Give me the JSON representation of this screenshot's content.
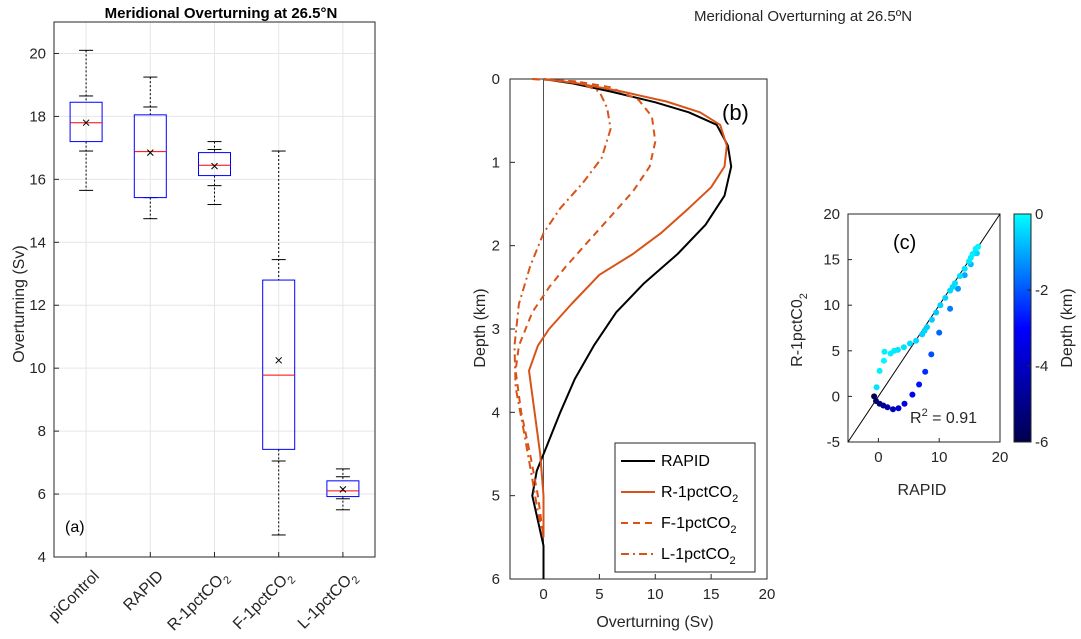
{
  "figure": {
    "title_a": "Meridional Overturning at 26.5°N",
    "title_b": "Meridional Overturning at 26.5ºN"
  },
  "chart_data": [
    {
      "type": "box",
      "panel_label": "(a)",
      "title": "Meridional Overturning at 26.5°N",
      "xlabel": "",
      "ylabel": "Overturning (Sv)",
      "ylim": [
        4,
        21
      ],
      "yticks": [
        4,
        6,
        8,
        10,
        12,
        14,
        16,
        18,
        20
      ],
      "grid": true,
      "categories": [
        {
          "label": "piControl",
          "sub": ""
        },
        {
          "label": "RAPID",
          "sub": ""
        },
        {
          "label": "R-1pctCO",
          "sub": "2"
        },
        {
          "label": "F-1pctCO",
          "sub": "2"
        },
        {
          "label": "L-1pctCO",
          "sub": "2"
        }
      ],
      "boxes": [
        {
          "min": 15.65,
          "q1": 17.2,
          "median": 17.8,
          "q3": 18.45,
          "max": 20.1,
          "mean": 17.8,
          "ticks": [
            15.65,
            16.9,
            18.65,
            20.1
          ]
        },
        {
          "min": 14.75,
          "q1": 15.42,
          "median": 16.88,
          "q3": 18.05,
          "max": 19.25,
          "mean": 16.85,
          "ticks": [
            14.75,
            15.42,
            18.3,
            19.25
          ]
        },
        {
          "min": 15.2,
          "q1": 16.12,
          "median": 16.45,
          "q3": 16.85,
          "max": 17.2,
          "mean": 16.42,
          "ticks": [
            15.2,
            15.8,
            16.95,
            17.2
          ]
        },
        {
          "min": 4.7,
          "q1": 7.42,
          "median": 9.78,
          "q3": 12.8,
          "max": 16.9,
          "mean": 10.25,
          "ticks": [
            4.7,
            7.05,
            13.45,
            16.9
          ]
        },
        {
          "min": 5.5,
          "q1": 5.92,
          "median": 6.1,
          "q3": 6.42,
          "max": 6.8,
          "mean": 6.15,
          "ticks": [
            5.5,
            5.85,
            6.55,
            6.8
          ]
        }
      ],
      "colors": {
        "box": "#0000ff",
        "median": "#ff0000",
        "whisker": "#000000",
        "mean": "#000000"
      }
    },
    {
      "type": "line",
      "panel_label": "(b)",
      "title": "Meridional Overturning at 26.5ºN",
      "xlabel": "Overturning (Sv)",
      "ylabel": "Depth (km)",
      "xlim": [
        -3,
        20
      ],
      "ylim": [
        0,
        6
      ],
      "xticks": [
        0,
        5,
        10,
        15,
        20
      ],
      "yticks": [
        0,
        1,
        2,
        3,
        4,
        5,
        6
      ],
      "yreversed": true,
      "legend_position": "lower right",
      "series": [
        {
          "name": "RAPID",
          "sub": "",
          "color": "#000000",
          "dash": "solid",
          "points": [
            [
              0,
              0
            ],
            [
              2.5,
              0.05
            ],
            [
              6,
              0.15
            ],
            [
              10,
              0.28
            ],
            [
              13,
              0.4
            ],
            [
              15.5,
              0.55
            ],
            [
              16.5,
              0.8
            ],
            [
              16.8,
              1.05
            ],
            [
              16.2,
              1.4
            ],
            [
              14.5,
              1.75
            ],
            [
              12,
              2.1
            ],
            [
              9,
              2.45
            ],
            [
              6.5,
              2.8
            ],
            [
              4.5,
              3.2
            ],
            [
              2.8,
              3.6
            ],
            [
              1.5,
              4.0
            ],
            [
              0.3,
              4.4
            ],
            [
              -0.6,
              4.7
            ],
            [
              -1.0,
              5.0
            ],
            [
              -0.5,
              5.3
            ],
            [
              0,
              5.6
            ],
            [
              0,
              6.0
            ]
          ]
        },
        {
          "name": "R-1pctCO",
          "sub": "2",
          "color": "#d95319",
          "dash": "solid",
          "points": [
            [
              0,
              0
            ],
            [
              3,
              0.05
            ],
            [
              7,
              0.15
            ],
            [
              11,
              0.27
            ],
            [
              14,
              0.4
            ],
            [
              15.8,
              0.55
            ],
            [
              16.4,
              0.8
            ],
            [
              16.2,
              1.05
            ],
            [
              15,
              1.3
            ],
            [
              13,
              1.55
            ],
            [
              10.5,
              1.85
            ],
            [
              8,
              2.1
            ],
            [
              5,
              2.35
            ],
            [
              2.5,
              2.7
            ],
            [
              0.5,
              3.0
            ],
            [
              -0.5,
              3.2
            ],
            [
              -1.3,
              3.5
            ],
            [
              -0.8,
              4.0
            ],
            [
              -0.3,
              4.5
            ],
            [
              0,
              5.0
            ],
            [
              0,
              5.5
            ]
          ]
        },
        {
          "name": "F-1pctCO",
          "sub": "2",
          "color": "#d95319",
          "dash": "dashed",
          "points": [
            [
              -1,
              0
            ],
            [
              3,
              0.03
            ],
            [
              6,
              0.1
            ],
            [
              8.5,
              0.25
            ],
            [
              9.7,
              0.45
            ],
            [
              10,
              0.75
            ],
            [
              9.5,
              1.05
            ],
            [
              8,
              1.35
            ],
            [
              6,
              1.65
            ],
            [
              4,
              1.95
            ],
            [
              2,
              2.25
            ],
            [
              0.5,
              2.5
            ],
            [
              -1,
              2.8
            ],
            [
              -2.2,
              3.2
            ],
            [
              -2.5,
              3.5
            ],
            [
              -2,
              4.0
            ],
            [
              -1.2,
              4.5
            ],
            [
              -0.5,
              5.0
            ],
            [
              0,
              5.5
            ]
          ]
        },
        {
          "name": "L-1pctCO",
          "sub": "2",
          "color": "#d95319",
          "dash": "dashdot",
          "points": [
            [
              -1,
              0
            ],
            [
              3,
              0.03
            ],
            [
              5,
              0.15
            ],
            [
              5.7,
              0.35
            ],
            [
              6,
              0.6
            ],
            [
              5.2,
              0.95
            ],
            [
              3.5,
              1.25
            ],
            [
              1.5,
              1.55
            ],
            [
              0,
              1.85
            ],
            [
              -1.2,
              2.25
            ],
            [
              -2.2,
              2.7
            ],
            [
              -2.6,
              3.2
            ],
            [
              -2.5,
              3.7
            ],
            [
              -1.8,
              4.2
            ],
            [
              -1,
              4.8
            ],
            [
              -0.5,
              5.2
            ],
            [
              0,
              5.5
            ]
          ]
        }
      ]
    },
    {
      "type": "scatter",
      "panel_label": "(c)",
      "xlabel": "RAPID",
      "ylabel": "R-1pctC0",
      "ylabel_sub": "2",
      "xlim": [
        -5,
        20
      ],
      "ylim": [
        -5,
        20
      ],
      "xticks": [
        0,
        10,
        20
      ],
      "yticks": [
        -5,
        0,
        5,
        10,
        15,
        20
      ],
      "annotation": {
        "text": "R",
        "sup": "2",
        "rest": " = 0.91"
      },
      "colorbar": {
        "label": "Depth (km)",
        "range": [
          -6,
          0
        ],
        "ticks": [
          0,
          -2,
          -4,
          -6
        ],
        "low_color": "#00004d",
        "high_color": "#00ffff"
      },
      "points": [
        [
          -0.7,
          0,
          -6
        ],
        [
          -0.4,
          -0.5,
          -5.6
        ],
        [
          0.2,
          -0.8,
          -5.1
        ],
        [
          0.8,
          -1.0,
          -4.8
        ],
        [
          1.5,
          -1.2,
          -4.5
        ],
        [
          2.4,
          -1.4,
          -4.2
        ],
        [
          3.3,
          -1.3,
          -3.8
        ],
        [
          4.3,
          -0.8,
          -3.5
        ],
        [
          5.6,
          0.2,
          -3.1
        ],
        [
          6.7,
          1.3,
          -2.8
        ],
        [
          7.7,
          2.7,
          -2.5
        ],
        [
          8.7,
          4.6,
          -2.1
        ],
        [
          10,
          7,
          -1.8
        ],
        [
          11.8,
          9.6,
          -1.5
        ],
        [
          13.1,
          11.8,
          -1.2
        ],
        [
          14.2,
          13.3,
          -1.0
        ],
        [
          15.2,
          14.5,
          -0.8
        ],
        [
          15.8,
          15.7,
          -0.6
        ],
        [
          16.2,
          15.7,
          -0.5
        ],
        [
          -0.3,
          1,
          -0.3
        ],
        [
          0.2,
          2.8,
          -0.15
        ],
        [
          0.9,
          3.9,
          -0.1
        ],
        [
          2,
          4.7,
          -0.2
        ],
        [
          3.2,
          5.1,
          -0.3
        ],
        [
          4.2,
          5.4,
          -0.35
        ],
        [
          5.2,
          5.8,
          -0.4
        ],
        [
          6.2,
          6.1,
          -0.45
        ],
        [
          7.2,
          6.8,
          -0.5
        ],
        [
          8,
          7.6,
          -0.55
        ],
        [
          8.8,
          8.4,
          -0.6
        ],
        [
          9.5,
          9.2,
          -0.6
        ],
        [
          10.2,
          10,
          -0.55
        ],
        [
          11,
          10.8,
          -0.5
        ],
        [
          11.8,
          11.6,
          -0.45
        ],
        [
          12.6,
          12.4,
          -0.4
        ],
        [
          13.4,
          13.2,
          -0.35
        ],
        [
          14.2,
          14,
          -0.3
        ],
        [
          14.9,
          14.8,
          -0.25
        ],
        [
          15.5,
          15.6,
          -0.2
        ],
        [
          16,
          16.2,
          -0.15
        ],
        [
          16.4,
          16.4,
          -0.1
        ],
        [
          1,
          4.9,
          -0.2
        ],
        [
          2.6,
          5.0,
          -0.25
        ],
        [
          7.6,
          7.2,
          -0.5
        ],
        [
          12.2,
          12.0,
          -0.42
        ],
        [
          15.2,
          15.2,
          -0.22
        ]
      ]
    }
  ]
}
